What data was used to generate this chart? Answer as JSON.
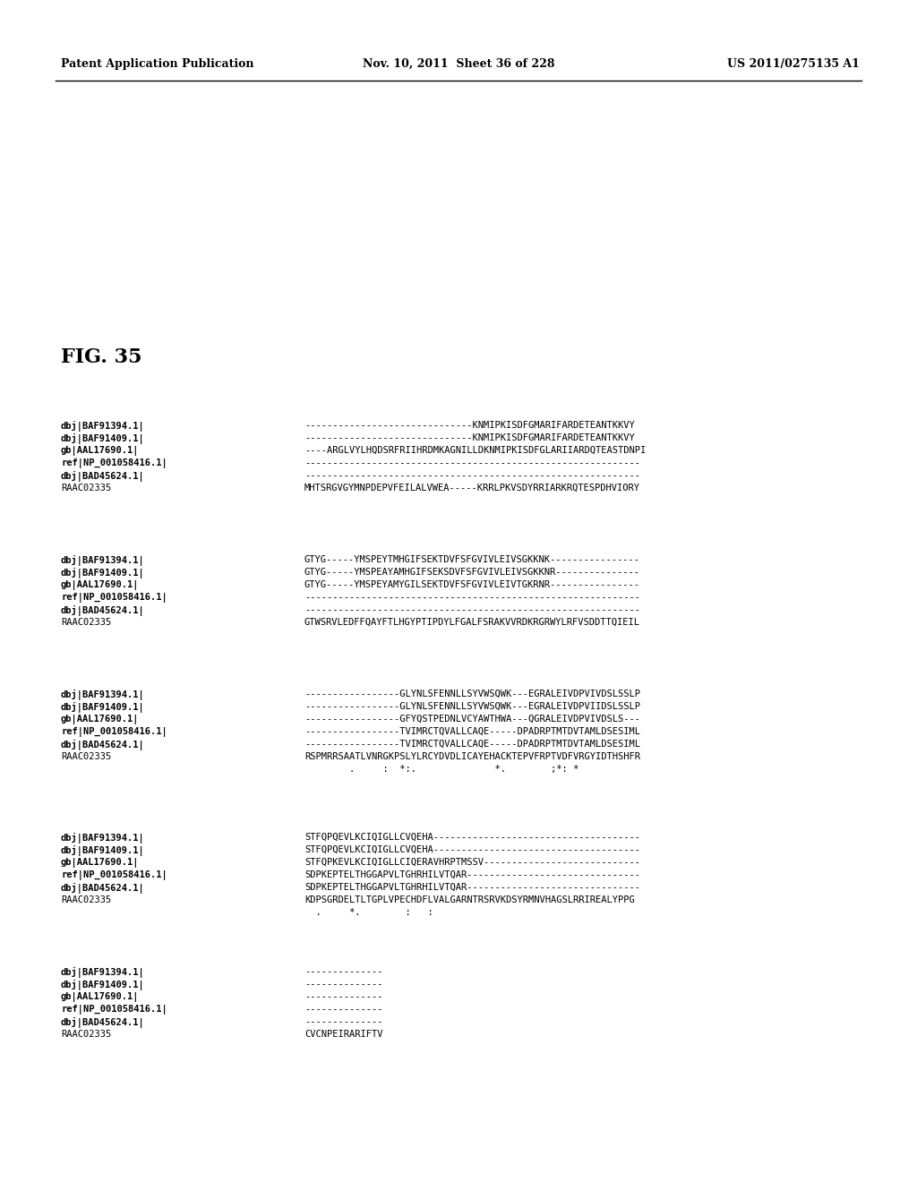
{
  "header_left": "Patent Application Publication",
  "header_center": "Nov. 10, 2011  Sheet 36 of 228",
  "header_right": "US 2011/0275135 A1",
  "fig_label": "FIG. 35",
  "background_color": "#ffffff",
  "sequences": [
    {
      "block": 1,
      "rows": [
        {
          "label": "dbj|BAF91394.1|",
          "seq": "------------------------------KNMIPKISDFGMARIFARDETEANTKKVY"
        },
        {
          "label": "dbj|BAF91409.1|",
          "seq": "------------------------------KNMIPKISDFGMARIFARDETEANTKKVY"
        },
        {
          "label": "gb|AAL17690.1|",
          "seq": "----ARGLVYLHQDSRFRIIHRDMKAGNILLDKNMIPKISDFGLARIIARDQTEASTDNPI"
        },
        {
          "label": "ref|NP_001058416.1|",
          "seq": "------------------------------------------------------------"
        },
        {
          "label": "dbj|BAD45624.1|",
          "seq": "------------------------------------------------------------"
        },
        {
          "label": "RAAC02335",
          "seq": "MHTSRGVGYMNPDEPVFEILALVWEA-----KRRLPKVSDYRRIARKRQTESPDHVIORY"
        }
      ]
    },
    {
      "block": 2,
      "rows": [
        {
          "label": "dbj|BAF91394.1|",
          "seq": "GTYG-----YMSPEYTMHGIFSEKTDVFSFGVIVLEIVSGKKNK----------------"
        },
        {
          "label": "dbj|BAF91409.1|",
          "seq": "GTYG-----YMSPEAYAMHGIFSEKSDVFSFGVIVLEIVSGKKNR---------------"
        },
        {
          "label": "gb|AAL17690.1|",
          "seq": "GTYG-----YMSPEYAMYGILSEKTDVFSFGVIVLEIVTGKRNR----------------"
        },
        {
          "label": "ref|NP_001058416.1|",
          "seq": "------------------------------------------------------------"
        },
        {
          "label": "dbj|BAD45624.1|",
          "seq": "------------------------------------------------------------"
        },
        {
          "label": "RAAC02335",
          "seq": "GTWSRVLEDFFQAYFTLHGYPTIPDYLFGALFSRAKVVRDKRGRWYLRFVSDDTTQIEIL"
        }
      ]
    },
    {
      "block": 3,
      "rows": [
        {
          "label": "dbj|BAF91394.1|",
          "seq": "-----------------GLYNLSFENNLLSYVWSQWK---EGRALEIVDPVIVDSLSSLP"
        },
        {
          "label": "dbj|BAF91409.1|",
          "seq": "-----------------GLYNLSFENNLLSYVWSQWK---EGRALEIVDPVIIDSLSSLP"
        },
        {
          "label": "gb|AAL17690.1|",
          "seq": "-----------------GFYQSTPEDNLVCYAWTHWA---QGRALEIVDPVIVDSLS---"
        },
        {
          "label": "ref|NP_001058416.1|",
          "seq": "-----------------TVIMRCTQVALLCAQE-----DPADRPTMTDVTAMLDSESIML"
        },
        {
          "label": "dbj|BAD45624.1|",
          "seq": "-----------------TVIMRCTQVALLCAQE-----DPADRPTMTDVTAMLDSESIML"
        },
        {
          "label": "RAAC02335",
          "seq": "RSPMRRSAATLVNRGKPSLYLRCYDVDLICAYEHACKTEPVFRPTVDFVRGYIDTHSHFR"
        },
        {
          "label": "",
          "seq": "        .     :  *:.              *.        ;*: *"
        }
      ]
    },
    {
      "block": 4,
      "rows": [
        {
          "label": "dbj|BAF91394.1|",
          "seq": "STFQPQEVLKCIQIGLLCVQEHA-------------------------------------"
        },
        {
          "label": "dbj|BAF91409.1|",
          "seq": "STFQPQEVLKCIQIGLLCVQEHA-------------------------------------"
        },
        {
          "label": "gb|AAL17690.1|",
          "seq": "STFQPKEVLKCIQIGLLCIQERAVHRPTMSSV----------------------------"
        },
        {
          "label": "ref|NP_001058416.1|",
          "seq": "SDPKEPTELTHGGAPVLTGHRHILVTQAR-------------------------------"
        },
        {
          "label": "dbj|BAD45624.1|",
          "seq": "SDPKEPTELTHGGAPVLTGHRHILVTQAR-------------------------------"
        },
        {
          "label": "RAAC02335",
          "seq": "KDPSGRDELTLTGPLVPECHDFLVALGARNTRSRVKDSYRMNVHAGSLRRIREALYPPG"
        },
        {
          "label": "",
          "seq": "  .     *.        :   :"
        }
      ]
    },
    {
      "block": 5,
      "rows": [
        {
          "label": "dbj|BAF91394.1|",
          "seq": "--------------"
        },
        {
          "label": "dbj|BAF91409.1|",
          "seq": "--------------"
        },
        {
          "label": "gb|AAL17690.1|",
          "seq": "--------------"
        },
        {
          "label": "ref|NP_001058416.1|",
          "seq": "--------------"
        },
        {
          "label": "dbj|BAD45624.1|",
          "seq": "--------------"
        },
        {
          "label": "RAAC02335",
          "seq": "CVCNPEIRARIFTV"
        }
      ]
    }
  ]
}
